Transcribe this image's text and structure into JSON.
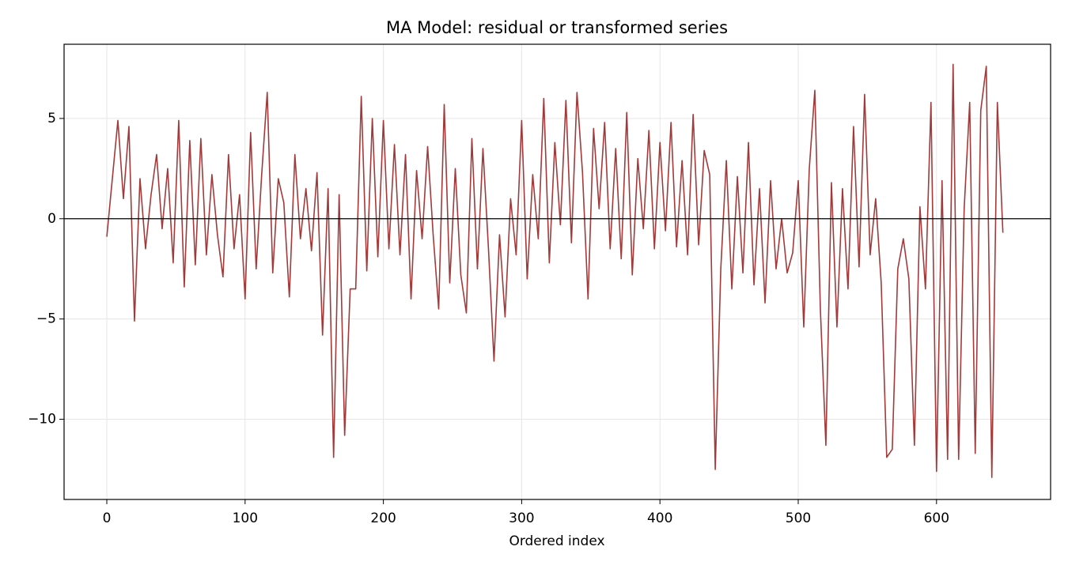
{
  "chart_data": {
    "type": "line",
    "title": "MA Model: residual or transformed series",
    "x_label": "Ordered index",
    "x": [
      0,
      4,
      8,
      12,
      16,
      20,
      24,
      28,
      32,
      36,
      40,
      44,
      48,
      52,
      56,
      60,
      64,
      68,
      72,
      76,
      80,
      84,
      88,
      92,
      96,
      100,
      104,
      108,
      112,
      116,
      120,
      124,
      128,
      132,
      136,
      140,
      144,
      148,
      152,
      156,
      160,
      164,
      168,
      172,
      176,
      180,
      184,
      188,
      192,
      196,
      200,
      204,
      208,
      212,
      216,
      220,
      224,
      228,
      232,
      236,
      240,
      244,
      248,
      252,
      256,
      260,
      264,
      268,
      272,
      276,
      280,
      284,
      288,
      292,
      296,
      300,
      304,
      308,
      312,
      316,
      320,
      324,
      328,
      332,
      336,
      340,
      344,
      348,
      352,
      356,
      360,
      364,
      368,
      372,
      376,
      380,
      384,
      388,
      392,
      396,
      400,
      404,
      408,
      412,
      416,
      420,
      424,
      428,
      432,
      436,
      440,
      444,
      448,
      452,
      456,
      460,
      464,
      468,
      472,
      476,
      480,
      484,
      488,
      492,
      496,
      500,
      504,
      508,
      512,
      516,
      520,
      524,
      528,
      532,
      536,
      540,
      544,
      548,
      552,
      556,
      560,
      564,
      568,
      572,
      576,
      580,
      584,
      588,
      592,
      596,
      600,
      604,
      608,
      612,
      616,
      620,
      624,
      628,
      632,
      636,
      640,
      644,
      648
    ],
    "values": [
      -0.9,
      2.0,
      4.9,
      1.0,
      4.6,
      -5.1,
      2.0,
      -1.5,
      1.2,
      3.2,
      -0.5,
      2.5,
      -2.2,
      4.9,
      -3.4,
      3.9,
      -2.3,
      4.0,
      -1.8,
      2.2,
      -0.8,
      -2.9,
      3.2,
      -1.5,
      1.2,
      -4.0,
      4.3,
      -2.5,
      2.2,
      6.3,
      -2.7,
      2.0,
      0.8,
      -3.9,
      3.2,
      -1.0,
      1.5,
      -1.6,
      2.3,
      -5.8,
      1.5,
      -11.9,
      1.2,
      -10.8,
      -3.5,
      -3.5,
      6.1,
      -2.6,
      5.0,
      -1.9,
      4.9,
      -1.5,
      3.7,
      -1.8,
      3.2,
      -4.0,
      2.4,
      -1.0,
      3.6,
      -0.8,
      -4.5,
      5.7,
      -3.2,
      2.5,
      -2.8,
      -4.7,
      4.0,
      -2.5,
      3.5,
      -1.5,
      -7.1,
      -0.8,
      -4.9,
      1.0,
      -1.8,
      4.9,
      -3.0,
      2.2,
      -1.0,
      6.0,
      -2.2,
      3.8,
      -0.3,
      5.9,
      -1.2,
      6.3,
      2.3,
      -4.0,
      4.5,
      0.5,
      4.8,
      -1.5,
      3.5,
      -2.0,
      5.3,
      -2.8,
      3.0,
      -0.5,
      4.4,
      -1.5,
      3.8,
      -0.6,
      4.8,
      -1.4,
      2.9,
      -1.8,
      5.2,
      -1.3,
      3.4,
      2.2,
      -12.5,
      -2.5,
      2.9,
      -3.5,
      2.1,
      -2.7,
      3.8,
      -3.3,
      1.5,
      -4.2,
      1.9,
      -2.5,
      0.0,
      -2.7,
      -1.7,
      1.9,
      -5.4,
      2.5,
      6.4,
      -4.5,
      -11.3,
      1.8,
      -5.4,
      1.5,
      -3.5,
      4.6,
      -2.4,
      6.2,
      -1.8,
      1.0,
      -3.2,
      -11.9,
      -11.5,
      -2.5,
      -1.0,
      -3.0,
      -11.3,
      0.6,
      -3.5,
      5.8,
      -12.6,
      1.9,
      -12.0,
      7.7,
      -12.0,
      0.5,
      5.8,
      -11.7,
      5.4,
      7.6,
      -12.9,
      5.8,
      -0.7
    ],
    "color": "#a33a3a",
    "reference_line": 0,
    "xlim": [
      -30.9,
      682.5
    ],
    "xticks": [
      0,
      100,
      200,
      300,
      400,
      500,
      600
    ],
    "ylim": [
      -14.0,
      8.7
    ],
    "yticks": [
      {
        "value": -10,
        "label": "−10"
      },
      {
        "value": -5,
        "label": "−5"
      },
      0,
      5
    ],
    "grid": true
  }
}
